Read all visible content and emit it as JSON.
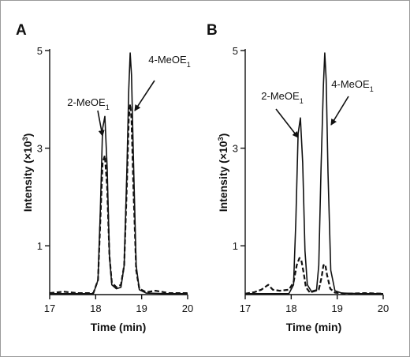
{
  "chart_data": [
    {
      "type": "line",
      "panel_label": "A",
      "xlabel": "Time (min)",
      "ylabel_main": "Intensity (×10",
      "ylabel_sup": "3",
      "ylabel_end": ")",
      "xlim": [
        17,
        20
      ],
      "ylim": [
        0,
        5
      ],
      "xticks": [
        "17",
        "18",
        "19",
        "20"
      ],
      "yticks": [
        "1",
        "3",
        "5"
      ],
      "series": [
        {
          "style": "solid",
          "x": [
            17.0,
            17.6,
            17.95,
            18.05,
            18.1,
            18.15,
            18.2,
            18.25,
            18.3,
            18.35,
            18.45,
            18.55,
            18.62,
            18.68,
            18.72,
            18.75,
            18.78,
            18.82,
            18.88,
            18.95,
            19.1,
            19.5,
            20.0
          ],
          "y": [
            0.02,
            0.02,
            0.02,
            0.3,
            1.7,
            3.4,
            3.65,
            2.6,
            0.8,
            0.2,
            0.12,
            0.15,
            0.6,
            2.6,
            4.2,
            4.95,
            4.5,
            2.8,
            0.6,
            0.1,
            0.03,
            0.02,
            0.02
          ]
        },
        {
          "style": "dashed",
          "x": [
            17.0,
            17.3,
            17.6,
            17.95,
            18.05,
            18.1,
            18.15,
            18.2,
            18.25,
            18.3,
            18.35,
            18.45,
            18.55,
            18.62,
            18.68,
            18.72,
            18.75,
            18.78,
            18.82,
            18.88,
            18.95,
            19.1,
            19.3,
            19.6,
            20.0
          ],
          "y": [
            0.03,
            0.06,
            0.03,
            0.03,
            0.3,
            1.5,
            2.7,
            2.85,
            2.2,
            0.8,
            0.25,
            0.15,
            0.2,
            0.6,
            2.3,
            3.6,
            3.9,
            3.6,
            2.2,
            0.5,
            0.12,
            0.05,
            0.08,
            0.03,
            0.03
          ]
        }
      ],
      "annotations": [
        {
          "text": "2-MeOE",
          "sub": "1",
          "target_x": 18.2,
          "target_y": 3.0
        },
        {
          "text": "4-MeOE",
          "sub": "1",
          "target_x": 18.82,
          "target_y": 3.8
        }
      ]
    },
    {
      "type": "line",
      "panel_label": "B",
      "xlabel": "Time (min)",
      "ylabel_main": "Intensity (×10",
      "ylabel_sup": "3",
      "ylabel_end": ")",
      "xlim": [
        17,
        20
      ],
      "ylim": [
        0,
        5
      ],
      "xticks": [
        "17",
        "18",
        "19",
        "20"
      ],
      "yticks": [
        "1",
        "3",
        "5"
      ],
      "series": [
        {
          "style": "solid",
          "x": [
            17.0,
            17.6,
            17.95,
            18.05,
            18.1,
            18.15,
            18.2,
            18.25,
            18.3,
            18.35,
            18.45,
            18.55,
            18.6,
            18.65,
            18.7,
            18.73,
            18.76,
            18.8,
            18.86,
            18.95,
            19.1,
            19.5,
            20.0
          ],
          "y": [
            0.02,
            0.02,
            0.02,
            0.2,
            1.5,
            3.3,
            3.62,
            2.7,
            0.9,
            0.2,
            0.05,
            0.08,
            0.6,
            2.6,
            4.3,
            4.95,
            4.4,
            2.5,
            0.5,
            0.08,
            0.03,
            0.02,
            0.02
          ]
        },
        {
          "style": "dashed",
          "x": [
            17.0,
            17.2,
            17.35,
            17.5,
            17.6,
            17.75,
            17.95,
            18.05,
            18.12,
            18.18,
            18.22,
            18.27,
            18.32,
            18.4,
            18.5,
            18.6,
            18.66,
            18.7,
            18.74,
            18.78,
            18.85,
            18.95,
            19.2,
            19.6,
            20.0
          ],
          "y": [
            0.02,
            0.05,
            0.1,
            0.2,
            0.1,
            0.08,
            0.1,
            0.25,
            0.6,
            0.75,
            0.7,
            0.45,
            0.15,
            0.05,
            0.08,
            0.1,
            0.35,
            0.6,
            0.62,
            0.4,
            0.12,
            0.04,
            0.02,
            0.03,
            0.02
          ]
        }
      ],
      "annotations": [
        {
          "text": "2-MeOE",
          "sub": "1",
          "target_x": 18.08,
          "target_y": 3.3
        },
        {
          "text": "4-MeOE",
          "sub": "1",
          "target_x": 18.82,
          "target_y": 3.75
        }
      ]
    }
  ]
}
